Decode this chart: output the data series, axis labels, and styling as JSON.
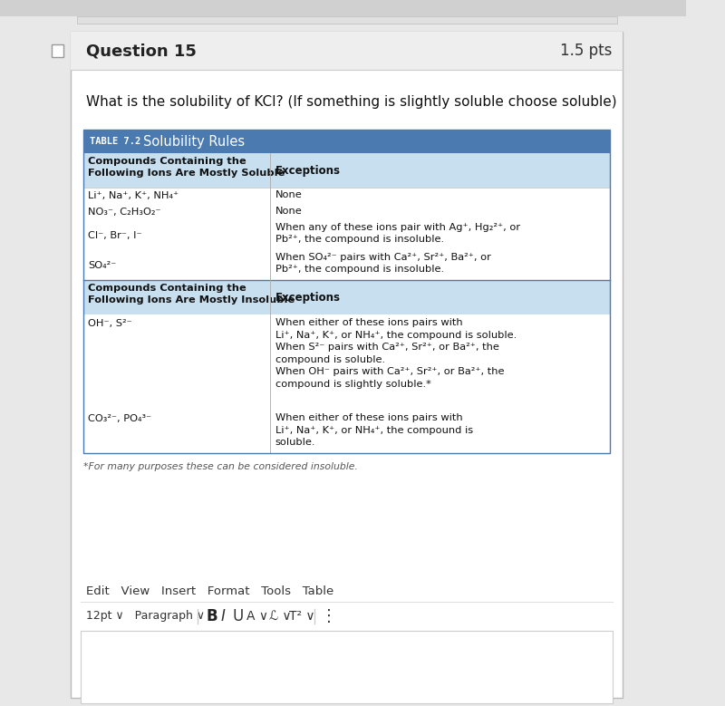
{
  "bg_color": "#e8e8e8",
  "card_color": "#ffffff",
  "card_border": "#bbbbbb",
  "question_title": "Question 15",
  "question_pts": "1.5 pts",
  "question_text": "What is the solubility of KCI? (If something is slightly soluble choose soluble)",
  "table_title_small": "TABLE 7.2",
  "table_title_large": "Solubility Rules",
  "table_header_bg": "#4a7ab0",
  "table_subheader_bg": "#c8dff0",
  "table_border": "#4a7ab0",
  "soluble_header_col1": "Compounds Containing the\nFollowing Ions Are Mostly Soluble",
  "soluble_header_col2": "Exceptions",
  "insoluble_header_col1": "Compounds Containing the\nFollowing Ions Are Mostly Insoluble",
  "insoluble_header_col2": "Exceptions",
  "soluble_rows": [
    [
      "Li⁺, Na⁺, K⁺, NH₄⁺",
      "None"
    ],
    [
      "NO₃⁻, C₂H₃O₂⁻",
      "None"
    ],
    [
      "Cl⁻, Br⁻, I⁻",
      "When any of these ions pair with Ag⁺, Hg₂²⁺, or\nPb²⁺, the compound is insoluble."
    ],
    [
      "SO₄²⁻",
      "When SO₄²⁻ pairs with Ca²⁺, Sr²⁺, Ba²⁺, or\nPb²⁺, the compound is insoluble."
    ]
  ],
  "insoluble_rows": [
    [
      "OH⁻, S²⁻",
      "When either of these ions pairs with\nLi⁺, Na⁺, K⁺, or NH₄⁺, the compound is soluble.\nWhen S²⁻ pairs with Ca²⁺, Sr²⁺, or Ba²⁺, the\ncompound is soluble.\nWhen OH⁻ pairs with Ca²⁺, Sr²⁺, or Ba²⁺, the\ncompound is slightly soluble.*"
    ],
    [
      "CO₃²⁻, PO₄³⁻",
      "When either of these ions pairs with\nLi⁺, Na⁺, K⁺, or NH₄⁺, the compound is\nsoluble."
    ]
  ],
  "footnote": "*For many purposes these can be considered insoluble.",
  "col_split": 0.355
}
